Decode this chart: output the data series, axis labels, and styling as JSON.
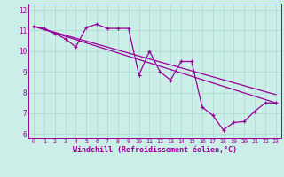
{
  "xlabel": "Windchill (Refroidissement éolien,°C)",
  "bg_color": "#cceee8",
  "line_color": "#990099",
  "grid_color": "#aad8d0",
  "xlim": [
    -0.5,
    23.5
  ],
  "ylim": [
    5.8,
    12.3
  ],
  "yticks": [
    6,
    7,
    8,
    9,
    10,
    11,
    12
  ],
  "xticks": [
    0,
    1,
    2,
    3,
    4,
    5,
    6,
    7,
    8,
    9,
    10,
    11,
    12,
    13,
    14,
    15,
    16,
    17,
    18,
    19,
    20,
    21,
    22,
    23
  ],
  "data_x": [
    0,
    1,
    2,
    3,
    4,
    5,
    6,
    7,
    8,
    9,
    10,
    11,
    12,
    13,
    14,
    15,
    16,
    17,
    18,
    19,
    20,
    21,
    22,
    23
  ],
  "data_y": [
    11.2,
    11.1,
    10.85,
    10.6,
    10.2,
    11.15,
    11.3,
    11.1,
    11.1,
    11.1,
    8.85,
    10.0,
    9.0,
    8.6,
    9.5,
    9.5,
    7.3,
    6.9,
    6.2,
    6.55,
    6.6,
    7.1,
    7.5,
    7.5
  ],
  "trend1_x": [
    0,
    23
  ],
  "trend1_y": [
    11.2,
    7.9
  ],
  "trend2_x": [
    0,
    23
  ],
  "trend2_y": [
    11.2,
    7.5
  ]
}
